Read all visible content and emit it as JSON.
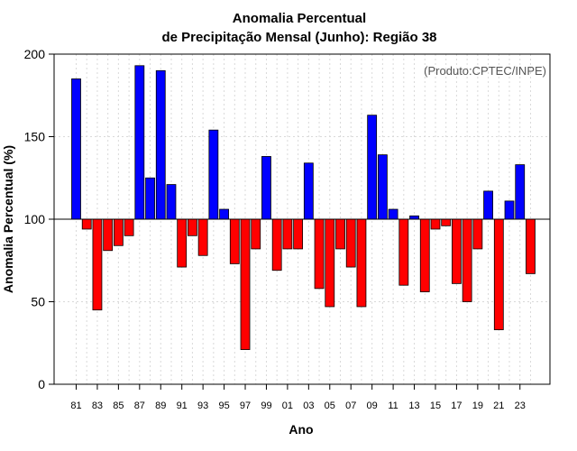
{
  "chart_data": {
    "type": "bar",
    "title": "Anomalia Percentual",
    "subtitle": "de Precipitação Mensal (Junho): Região 38",
    "xlabel": "Ano",
    "ylabel": "Anomalia Percentual (%)",
    "credit": "(Produto:CPTEC/INPE)",
    "ylim": [
      0,
      200
    ],
    "yticks": [
      "0",
      "50",
      "100",
      "150",
      "200"
    ],
    "baseline": 100,
    "grid": true,
    "colors": {
      "above": "#0000ff",
      "below": "#ff0000",
      "edge": "#000000"
    },
    "categories": [
      "81",
      "82",
      "83",
      "84",
      "85",
      "86",
      "87",
      "88",
      "89",
      "90",
      "91",
      "92",
      "93",
      "94",
      "95",
      "96",
      "97",
      "98",
      "99",
      "00",
      "01",
      "02",
      "03",
      "04",
      "05",
      "06",
      "07",
      "08",
      "09",
      "10",
      "11",
      "12",
      "13",
      "14",
      "15",
      "16",
      "17",
      "18",
      "19",
      "20",
      "21",
      "22",
      "23",
      "24"
    ],
    "xtick_labels": [
      "81",
      "83",
      "85",
      "87",
      "89",
      "91",
      "93",
      "95",
      "97",
      "99",
      "01",
      "03",
      "05",
      "07",
      "09",
      "11",
      "13",
      "15",
      "17",
      "19",
      "21",
      "23"
    ],
    "values": [
      185,
      94,
      45,
      81,
      84,
      90,
      193,
      125,
      190,
      121,
      71,
      90,
      78,
      154,
      106,
      73,
      21,
      82,
      138,
      69,
      82,
      82,
      134,
      58,
      47,
      82,
      71,
      47,
      163,
      139,
      106,
      60,
      102,
      56,
      94,
      96,
      61,
      50,
      82,
      117,
      33,
      111,
      133,
      67
    ]
  }
}
